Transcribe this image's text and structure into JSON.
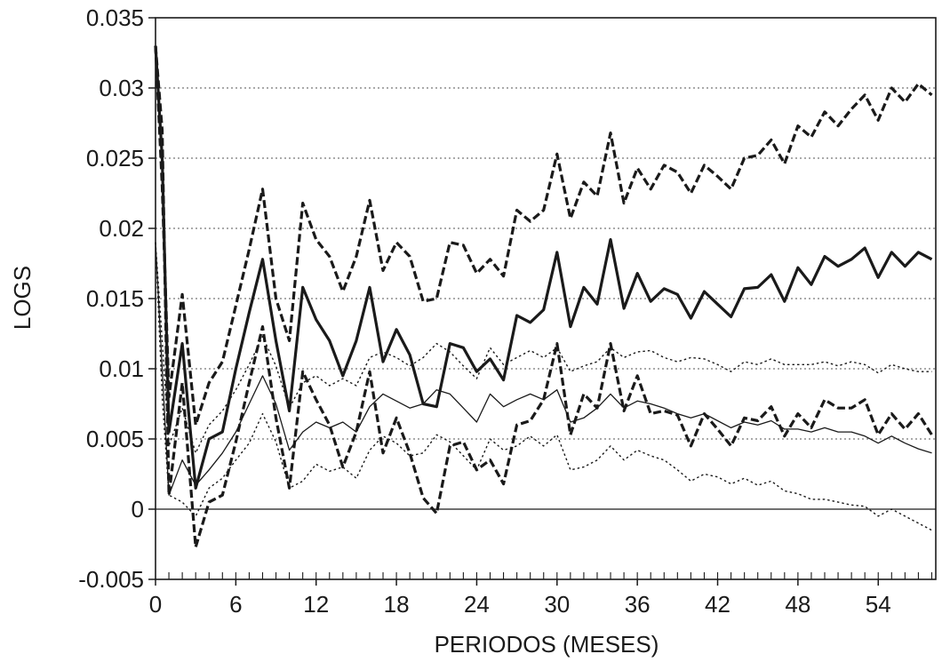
{
  "chart_data": {
    "type": "line",
    "title": "",
    "xlabel": "PERIODOS (MESES)",
    "ylabel": "LOGS",
    "xlim": [
      0,
      58.3
    ],
    "ylim": [
      -0.005,
      0.035
    ],
    "xticks": [
      0,
      6,
      12,
      18,
      24,
      30,
      36,
      42,
      48,
      54
    ],
    "xtick_labels": [
      "0",
      "6",
      "12",
      "18",
      "24",
      "30",
      "36",
      "42",
      "48",
      "54"
    ],
    "yticks": [
      -0.005,
      0,
      0.005,
      0.01,
      0.015,
      0.02,
      0.025,
      0.03,
      0.035
    ],
    "ytick_labels": [
      "-0.005",
      "0",
      "0.005",
      "0.01",
      "0.015",
      "0.02",
      "0.025",
      "0.03",
      "0.035"
    ],
    "grid": "horizontal-dotted",
    "legend": "none",
    "x": [
      0,
      0.5,
      1,
      2,
      3,
      4,
      5,
      6,
      7,
      8,
      9,
      10,
      11,
      12,
      13,
      14,
      15,
      16,
      17,
      18,
      19,
      20,
      21,
      22,
      23,
      24,
      25,
      26,
      27,
      28,
      29,
      30,
      31,
      32,
      33,
      34,
      35,
      36,
      37,
      38,
      39,
      40,
      41,
      42,
      43,
      44,
      45,
      46,
      47,
      48,
      49,
      50,
      51,
      52,
      53,
      54,
      55,
      56,
      57,
      58
    ],
    "series": [
      {
        "style": "thick-solid",
        "values": [
          0.033,
          0.025,
          0.0055,
          0.0118,
          0.0015,
          0.005,
          0.0055,
          0.01,
          0.014,
          0.0178,
          0.012,
          0.007,
          0.0158,
          0.0135,
          0.012,
          0.0095,
          0.012,
          0.0158,
          0.0105,
          0.0128,
          0.011,
          0.0075,
          0.0073,
          0.0118,
          0.0115,
          0.0098,
          0.0107,
          0.0092,
          0.0138,
          0.0133,
          0.0142,
          0.0183,
          0.013,
          0.0158,
          0.0146,
          0.0192,
          0.0143,
          0.0168,
          0.0148,
          0.0157,
          0.0153,
          0.0136,
          0.0155,
          0.0146,
          0.0137,
          0.0157,
          0.0158,
          0.0167,
          0.0148,
          0.0172,
          0.016,
          0.018,
          0.0173,
          0.0178,
          0.0186,
          0.0165,
          0.0183,
          0.0173,
          0.0183,
          0.0178
        ]
      },
      {
        "style": "thick-dashed",
        "values": [
          0.033,
          0.023,
          0.008,
          0.0153,
          0.006,
          0.009,
          0.0105,
          0.0145,
          0.0185,
          0.0228,
          0.015,
          0.012,
          0.0218,
          0.0192,
          0.018,
          0.0155,
          0.018,
          0.022,
          0.017,
          0.019,
          0.018,
          0.0148,
          0.015,
          0.019,
          0.0188,
          0.0168,
          0.0178,
          0.0166,
          0.0213,
          0.0205,
          0.0213,
          0.0253,
          0.0207,
          0.0233,
          0.0223,
          0.0268,
          0.0218,
          0.0243,
          0.0228,
          0.0245,
          0.024,
          0.0225,
          0.0245,
          0.0237,
          0.0228,
          0.025,
          0.0252,
          0.0263,
          0.0246,
          0.0273,
          0.0265,
          0.0283,
          0.0273,
          0.0285,
          0.0295,
          0.0277,
          0.03,
          0.029,
          0.0303,
          0.0295
        ]
      },
      {
        "style": "thick-dashed",
        "values": [
          0.033,
          0.027,
          0.001,
          0.009,
          -0.0027,
          0.0005,
          0.001,
          0.0048,
          0.009,
          0.013,
          0.0065,
          0.0015,
          0.0098,
          0.0078,
          0.006,
          0.003,
          0.0055,
          0.0098,
          0.004,
          0.0065,
          0.004,
          0.0008,
          -0.0003,
          0.0045,
          0.0048,
          0.0028,
          0.0035,
          0.0018,
          0.006,
          0.0063,
          0.0078,
          0.0118,
          0.0053,
          0.0082,
          0.0072,
          0.0118,
          0.007,
          0.0095,
          0.0068,
          0.007,
          0.0067,
          0.0045,
          0.0068,
          0.0057,
          0.0045,
          0.0065,
          0.0063,
          0.0073,
          0.0052,
          0.0068,
          0.0058,
          0.0078,
          0.0072,
          0.0072,
          0.0078,
          0.0053,
          0.0068,
          0.0057,
          0.0068,
          0.0053
        ]
      },
      {
        "style": "thin-solid",
        "values": [
          0.019,
          0.01,
          0.001,
          0.0035,
          0.0017,
          0.0028,
          0.004,
          0.0055,
          0.0075,
          0.0095,
          0.0075,
          0.0042,
          0.0055,
          0.0062,
          0.0058,
          0.0062,
          0.0055,
          0.0073,
          0.0082,
          0.0077,
          0.0072,
          0.0075,
          0.0085,
          0.0082,
          0.0072,
          0.0062,
          0.0082,
          0.0073,
          0.0078,
          0.0082,
          0.0078,
          0.0085,
          0.0062,
          0.0065,
          0.0072,
          0.0082,
          0.0072,
          0.0077,
          0.0075,
          0.0072,
          0.0068,
          0.0065,
          0.0068,
          0.0063,
          0.0058,
          0.0062,
          0.006,
          0.0063,
          0.0057,
          0.0057,
          0.0055,
          0.0058,
          0.0055,
          0.0055,
          0.0052,
          0.0047,
          0.0052,
          0.0047,
          0.0043,
          0.004
        ]
      },
      {
        "style": "thin-dotted",
        "values": [
          0.019,
          0.012,
          0.0045,
          0.0072,
          0.004,
          0.006,
          0.007,
          0.0085,
          0.0103,
          0.0123,
          0.0102,
          0.0072,
          0.009,
          0.0095,
          0.0088,
          0.0093,
          0.0088,
          0.0108,
          0.0112,
          0.0108,
          0.0102,
          0.0108,
          0.0118,
          0.0112,
          0.0102,
          0.0093,
          0.0115,
          0.0103,
          0.0108,
          0.0113,
          0.0108,
          0.0115,
          0.0098,
          0.0102,
          0.0105,
          0.0115,
          0.0108,
          0.0112,
          0.0113,
          0.0108,
          0.0105,
          0.0108,
          0.0107,
          0.0103,
          0.0098,
          0.0105,
          0.0103,
          0.0107,
          0.0103,
          0.0103,
          0.0103,
          0.0105,
          0.0102,
          0.0105,
          0.0103,
          0.0097,
          0.0103,
          0.01,
          0.0098,
          0.0098
        ]
      },
      {
        "style": "thin-dotted",
        "values": [
          0.019,
          0.008,
          0.001,
          0.0005,
          -0.0005,
          0.0015,
          0.0022,
          0.0035,
          0.0047,
          0.0068,
          0.0048,
          0.0015,
          0.002,
          0.0032,
          0.0027,
          0.003,
          0.0022,
          0.0042,
          0.0052,
          0.0047,
          0.0038,
          0.004,
          0.0053,
          0.0048,
          0.0038,
          0.0028,
          0.005,
          0.0042,
          0.0045,
          0.0052,
          0.0045,
          0.0053,
          0.0028,
          0.003,
          0.0035,
          0.0045,
          0.0035,
          0.0042,
          0.0038,
          0.0035,
          0.0028,
          0.002,
          0.0025,
          0.0023,
          0.0018,
          0.0022,
          0.0017,
          0.002,
          0.0013,
          0.0011,
          0.0007,
          0.0007,
          0.0005,
          0.0003,
          0.0002,
          -0.0005,
          0,
          -0.0005,
          -0.001,
          -0.0015
        ]
      }
    ]
  }
}
